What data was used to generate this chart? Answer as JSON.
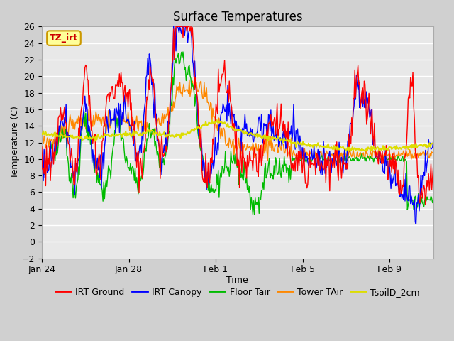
{
  "title": "Surface Temperatures",
  "xlabel": "Time",
  "ylabel": "Temperature (C)",
  "ylim": [
    -2,
    26
  ],
  "yticks": [
    -2,
    0,
    2,
    4,
    6,
    8,
    10,
    12,
    14,
    16,
    18,
    20,
    22,
    24,
    26
  ],
  "xtick_labels": [
    "Jan 24",
    "Jan 28",
    "Feb 1",
    "Feb 5",
    "Feb 9"
  ],
  "xtick_positions": [
    0,
    4,
    8,
    12,
    16
  ],
  "total_days": 18,
  "colors": {
    "IRT Ground": "#ff0000",
    "IRT Canopy": "#0000ff",
    "Floor Tair": "#00bb00",
    "Tower TAir": "#ff8800",
    "TsoilD_2cm": "#dddd00"
  },
  "annotation_text": "TZ_irt",
  "annotation_color": "#cc0000",
  "annotation_bg": "#ffff99",
  "annotation_border": "#cc9900",
  "fig_bg": "#d0d0d0",
  "plot_bg": "#e8e8e8",
  "grid_color": "#ffffff",
  "title_fontsize": 12,
  "axis_fontsize": 9,
  "legend_fontsize": 9
}
